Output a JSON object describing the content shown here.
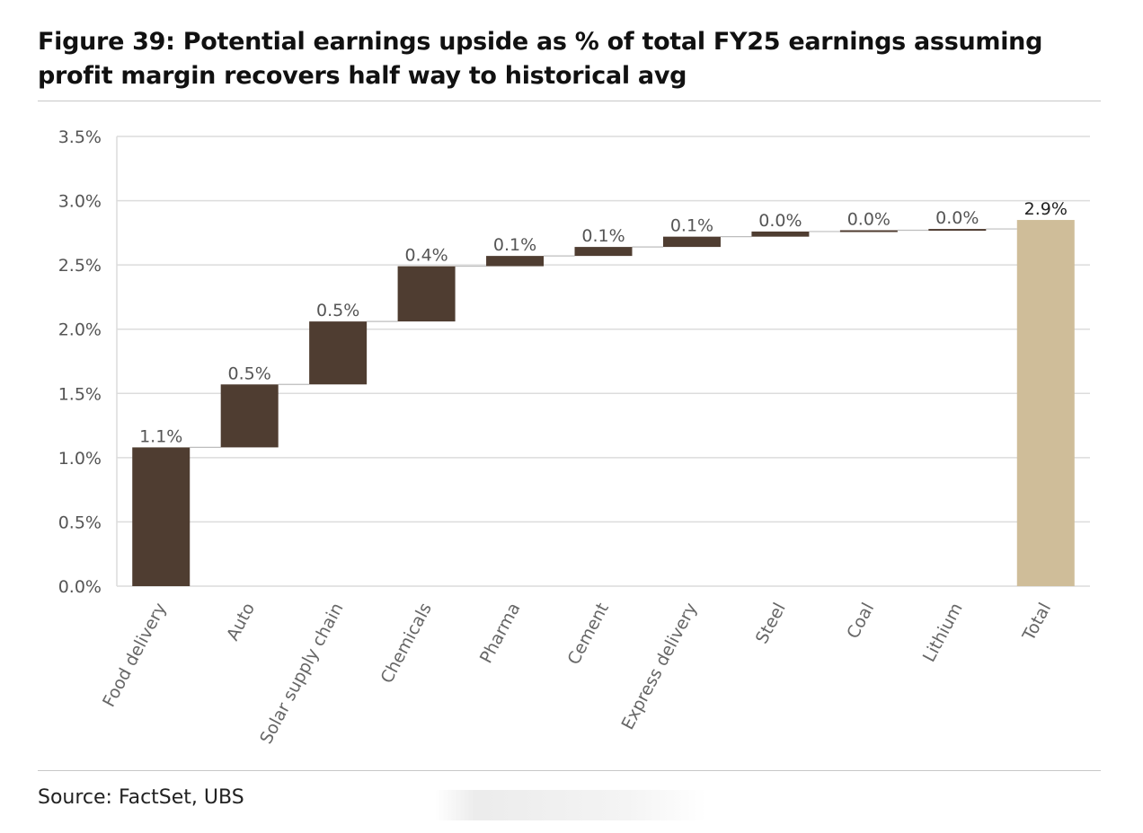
{
  "title": "Figure 39: Potential earnings upside as % of total FY25 earnings assuming profit margin recovers half way to historical avg",
  "source": "Source: FactSet, UBS",
  "colors": {
    "step": "#4f3d31",
    "total": "#cfbd99",
    "grid": "#dcdcdc",
    "connector": "#bdbdbd"
  },
  "chart_data": {
    "type": "bar",
    "subtype": "waterfall",
    "categories": [
      "Food delivery",
      "Auto",
      "Solar supply chain",
      "Chemicals",
      "Pharma",
      "Cement",
      "Express delivery",
      "Steel",
      "Coal",
      "Lithium",
      "Total"
    ],
    "values": [
      1.08,
      0.49,
      0.49,
      0.43,
      0.08,
      0.07,
      0.08,
      0.04,
      0.01,
      0.01,
      2.85
    ],
    "data_labels": [
      "1.1%",
      "0.5%",
      "0.5%",
      "0.4%",
      "0.1%",
      "0.1%",
      "0.1%",
      "0.0%",
      "0.0%",
      "0.0%",
      "2.9%"
    ],
    "is_total": [
      false,
      false,
      false,
      false,
      false,
      false,
      false,
      false,
      false,
      false,
      true
    ],
    "ylim": [
      0,
      3.5
    ],
    "yticks": [
      0,
      0.5,
      1.0,
      1.5,
      2.0,
      2.5,
      3.0,
      3.5
    ],
    "ytick_labels": [
      "0.0%",
      "0.5%",
      "1.0%",
      "1.5%",
      "2.0%",
      "2.5%",
      "3.0%",
      "3.5%"
    ],
    "grid": true,
    "legend": "none"
  }
}
